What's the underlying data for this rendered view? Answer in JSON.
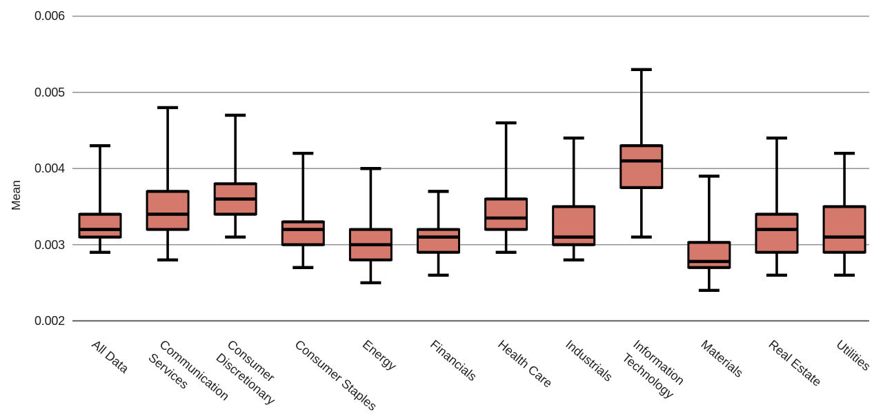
{
  "chart_data": {
    "type": "box",
    "title": "",
    "xlabel": "",
    "ylabel": "Mean",
    "ylim": [
      0.002,
      0.006
    ],
    "yticks": [
      0.002,
      0.003,
      0.004,
      0.005,
      0.006
    ],
    "ytick_labels": [
      "0.002",
      "0.003",
      "0.004",
      "0.005",
      "0.006"
    ],
    "grid": true,
    "legend": "none",
    "box_fill_color": "#d5796c",
    "box_line_color": "#000000",
    "gridline_color": "#8f8f8f",
    "baseline_color": "#6f6f6f",
    "categories": [
      "All Data",
      "Communication Services",
      "Consumer Discretionary",
      "Consumer Staples",
      "Energy",
      "Financials",
      "Health Care",
      "Industrials",
      "Information Technology",
      "Materials",
      "Real Estate",
      "Utilities"
    ],
    "category_label_lines": [
      [
        "All Data"
      ],
      [
        "Communication",
        "Services"
      ],
      [
        "Consumer",
        "Discretionary"
      ],
      [
        "Consumer Staples"
      ],
      [
        "Energy"
      ],
      [
        "Financials"
      ],
      [
        "Health Care"
      ],
      [
        "Industrials"
      ],
      [
        "Information",
        "Technology"
      ],
      [
        "Materials"
      ],
      [
        "Real Estate"
      ],
      [
        "Utilities"
      ]
    ],
    "boxes": [
      {
        "category": "All Data",
        "whisker_low": 0.0029,
        "q1": 0.0031,
        "median": 0.0032,
        "q3": 0.0034,
        "whisker_high": 0.0043
      },
      {
        "category": "Communication Services",
        "whisker_low": 0.0028,
        "q1": 0.0032,
        "median": 0.0034,
        "q3": 0.0037,
        "whisker_high": 0.0048
      },
      {
        "category": "Consumer Discretionary",
        "whisker_low": 0.0031,
        "q1": 0.0034,
        "median": 0.0036,
        "q3": 0.0038,
        "whisker_high": 0.0047
      },
      {
        "category": "Consumer Staples",
        "whisker_low": 0.0027,
        "q1": 0.003,
        "median": 0.0032,
        "q3": 0.0033,
        "whisker_high": 0.0042
      },
      {
        "category": "Energy",
        "whisker_low": 0.0025,
        "q1": 0.0028,
        "median": 0.003,
        "q3": 0.0032,
        "whisker_high": 0.004
      },
      {
        "category": "Financials",
        "whisker_low": 0.0026,
        "q1": 0.0029,
        "median": 0.0031,
        "q3": 0.0032,
        "whisker_high": 0.0037
      },
      {
        "category": "Health Care",
        "whisker_low": 0.0029,
        "q1": 0.0032,
        "median": 0.00335,
        "q3": 0.0036,
        "whisker_high": 0.0046
      },
      {
        "category": "Industrials",
        "whisker_low": 0.0028,
        "q1": 0.003,
        "median": 0.0031,
        "q3": 0.0035,
        "whisker_high": 0.0044
      },
      {
        "category": "Information Technology",
        "whisker_low": 0.0031,
        "q1": 0.00375,
        "median": 0.0041,
        "q3": 0.0043,
        "whisker_high": 0.0053
      },
      {
        "category": "Materials",
        "whisker_low": 0.0024,
        "q1": 0.0027,
        "median": 0.00278,
        "q3": 0.00303,
        "whisker_high": 0.0039
      },
      {
        "category": "Real Estate",
        "whisker_low": 0.0026,
        "q1": 0.0029,
        "median": 0.0032,
        "q3": 0.0034,
        "whisker_high": 0.0044
      },
      {
        "category": "Utilities",
        "whisker_low": 0.0026,
        "q1": 0.0029,
        "median": 0.0031,
        "q3": 0.0035,
        "whisker_high": 0.0042
      }
    ]
  }
}
